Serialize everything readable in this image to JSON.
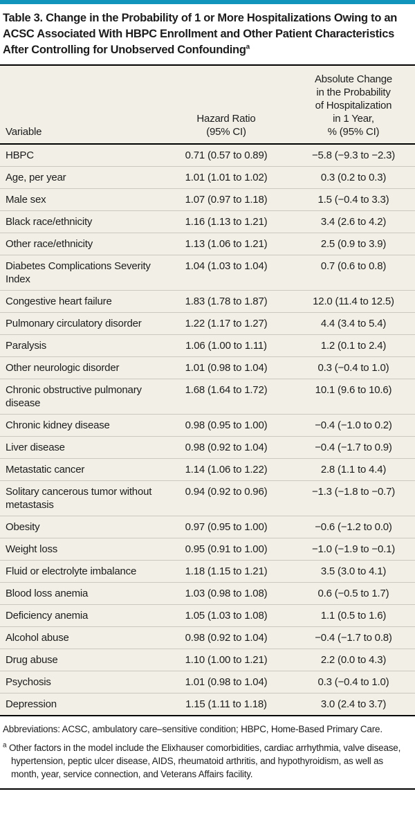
{
  "meta": {
    "accent_color": "#1295BD",
    "table_background": "#F1EFE6",
    "rule_color": "#000000",
    "row_divider_color": "#CBC8BE"
  },
  "title": {
    "text": "Table 3. Change in the Probability of 1 or More Hospitalizations Owing to an ACSC Associated With HBPC Enrollment and Other Patient Characteristics After Controlling for Unobserved Confounding",
    "footnote_marker": "a"
  },
  "table": {
    "headers": [
      {
        "label": "Variable"
      },
      {
        "label": "Hazard Ratio\n(95% CI)"
      },
      {
        "label": "Absolute Change\nin the Probability\nof Hospitalization\nin 1 Year,\n% (95% CI)"
      }
    ],
    "rows": [
      [
        "HBPC",
        "0.71 (0.57 to 0.89)",
        "−5.8 (−9.3 to −2.3)"
      ],
      [
        "Age, per year",
        "1.01 (1.01 to 1.02)",
        "0.3 (0.2 to 0.3)"
      ],
      [
        "Male sex",
        "1.07 (0.97 to 1.18)",
        "1.5 (−0.4 to 3.3)"
      ],
      [
        "Black race/ethnicity",
        "1.16 (1.13 to 1.21)",
        "3.4 (2.6 to 4.2)"
      ],
      [
        "Other race/ethnicity",
        "1.13 (1.06 to 1.21)",
        "2.5 (0.9 to 3.9)"
      ],
      [
        "Diabetes Complications Severity Index",
        "1.04 (1.03 to 1.04)",
        "0.7 (0.6 to 0.8)"
      ],
      [
        "Congestive heart failure",
        "1.83 (1.78 to 1.87)",
        "12.0 (11.4 to 12.5)"
      ],
      [
        "Pulmonary circulatory disorder",
        "1.22 (1.17 to 1.27)",
        "4.4 (3.4 to 5.4)"
      ],
      [
        "Paralysis",
        "1.06 (1.00 to 1.11)",
        "1.2 (0.1 to 2.4)"
      ],
      [
        "Other neurologic disorder",
        "1.01 (0.98 to 1.04)",
        "0.3 (−0.4 to 1.0)"
      ],
      [
        "Chronic obstructive pulmonary disease",
        "1.68 (1.64 to 1.72)",
        "10.1 (9.6 to 10.6)"
      ],
      [
        "Chronic kidney disease",
        "0.98 (0.95 to 1.00)",
        "−0.4 (−1.0 to 0.2)"
      ],
      [
        "Liver disease",
        "0.98 (0.92 to 1.04)",
        "−0.4 (−1.7 to 0.9)"
      ],
      [
        "Metastatic cancer",
        "1.14 (1.06 to 1.22)",
        "2.8 (1.1 to 4.4)"
      ],
      [
        "Solitary cancerous tumor without metastasis",
        "0.94 (0.92 to 0.96)",
        "−1.3 (−1.8 to −0.7)"
      ],
      [
        "Obesity",
        "0.97 (0.95 to 1.00)",
        "−0.6 (−1.2 to 0.0)"
      ],
      [
        "Weight loss",
        "0.95 (0.91 to 1.00)",
        "−1.0 (−1.9 to −0.1)"
      ],
      [
        "Fluid or electrolyte imbalance",
        "1.18 (1.15 to 1.21)",
        "3.5 (3.0 to 4.1)"
      ],
      [
        "Blood loss anemia",
        "1.03 (0.98 to 1.08)",
        "0.6 (−0.5 to 1.7)"
      ],
      [
        "Deficiency anemia",
        "1.05 (1.03 to 1.08)",
        "1.1 (0.5 to 1.6)"
      ],
      [
        "Alcohol abuse",
        "0.98 (0.92 to 1.04)",
        "−0.4 (−1.7 to 0.8)"
      ],
      [
        "Drug abuse",
        "1.10 (1.00 to 1.21)",
        "2.2 (0.0 to 4.3)"
      ],
      [
        "Psychosis",
        "1.01 (0.98 to 1.04)",
        "0.3 (−0.4 to 1.0)"
      ],
      [
        "Depression",
        "1.15 (1.11 to 1.18)",
        "3.0 (2.4 to 3.7)"
      ]
    ]
  },
  "footnotes": {
    "abbreviations": "Abbreviations: ACSC, ambulatory care–sensitive condition; HBPC, Home-Based Primary Care.",
    "note_a_marker": "a",
    "note_a": "Other factors in the model include the Elixhauser comorbidities, cardiac arrhythmia, valve disease, hypertension, peptic ulcer disease, AIDS, rheumatoid arthritis, and hypothyroidism, as well as month, year, service connection, and Veterans Affairs facility."
  }
}
